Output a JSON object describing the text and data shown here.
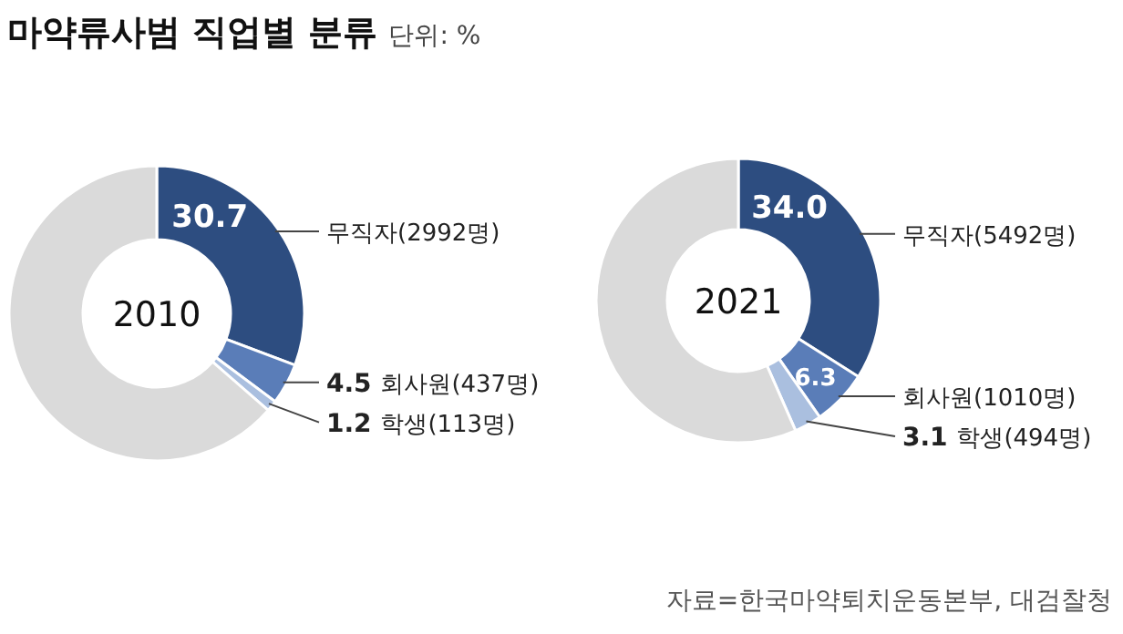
{
  "chart_data": [
    {
      "type": "donut",
      "title": "2010",
      "annotations": [
        "마약류사범 직업별 분류",
        "단위: %"
      ],
      "categories": [
        "무직자(2992명)",
        "회사원(437명)",
        "학생(113명)",
        null
      ],
      "values": [
        30.7,
        4.5,
        1.2,
        63.6
      ],
      "value_labels": [
        "30.7",
        "4.5",
        "1.2",
        null
      ],
      "colors": [
        "#2d4d80",
        "#5a7db8",
        "#aabfdf",
        "#dadada"
      ]
    },
    {
      "type": "donut",
      "title": "2021",
      "annotations": [
        "자료=한국마약퇴치운동본부, 대검찰청"
      ],
      "categories": [
        "무직자(5492명)",
        "회사원(1010명)",
        "학생(494명)",
        null
      ],
      "values": [
        34.0,
        6.3,
        3.1,
        56.6
      ],
      "value_labels": [
        "34.0",
        "6.3",
        "3.1",
        null
      ],
      "colors": [
        "#2d4d80",
        "#5a7db8",
        "#aabfdf",
        "#dadada"
      ]
    }
  ]
}
